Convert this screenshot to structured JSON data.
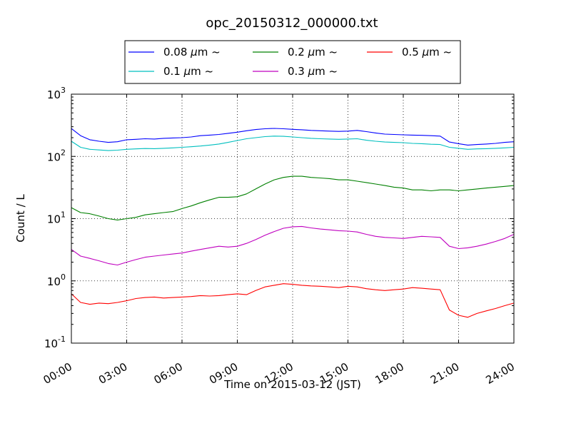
{
  "chart_data": {
    "type": "line",
    "title": "opc_20150312_000000.txt",
    "xlabel": "Time on 2015-03-12 (JST)",
    "ylabel": "Count / L",
    "x_ticks": [
      "00:00",
      "03:00",
      "06:00",
      "09:00",
      "12:00",
      "15:00",
      "18:00",
      "21:00",
      "24:00"
    ],
    "x_tick_hours": [
      0,
      3,
      6,
      9,
      12,
      15,
      18,
      21,
      24
    ],
    "xlim_hours": [
      0,
      24
    ],
    "y_scale": "log",
    "ylim": [
      0.1,
      1000
    ],
    "y_ticks": [
      {
        "value": 1000,
        "base": "10",
        "exp": "3"
      },
      {
        "value": 100,
        "base": "10",
        "exp": "2"
      },
      {
        "value": 10,
        "base": "10",
        "exp": "1"
      },
      {
        "value": 1,
        "base": "10",
        "exp": "0"
      },
      {
        "value": 0.1,
        "base": "10",
        "exp": "-1"
      }
    ],
    "grid": true,
    "legend_position": "top-center",
    "legend_unit": "μm",
    "legend_suffix": "~",
    "hours": [
      0,
      0.5,
      1,
      1.5,
      2,
      2.5,
      3,
      3.5,
      4,
      4.5,
      5,
      5.5,
      6,
      6.5,
      7,
      7.5,
      8,
      8.5,
      9,
      9.5,
      10,
      10.5,
      11,
      11.5,
      12,
      12.5,
      13,
      13.5,
      14,
      14.5,
      15,
      15.5,
      16,
      16.5,
      17,
      17.5,
      18,
      18.5,
      19,
      19.5,
      20,
      20.5,
      21,
      21.5,
      22,
      22.5,
      23,
      23.5,
      24
    ],
    "series": [
      {
        "name": "0.08",
        "color": "#0000ff",
        "values": [
          280,
          215,
          185,
          175,
          168,
          172,
          185,
          188,
          192,
          190,
          195,
          198,
          200,
          205,
          215,
          220,
          225,
          235,
          245,
          258,
          270,
          278,
          282,
          278,
          272,
          268,
          262,
          258,
          255,
          252,
          255,
          262,
          250,
          238,
          228,
          225,
          222,
          220,
          218,
          215,
          212,
          170,
          160,
          152,
          155,
          158,
          162,
          168,
          172
        ]
      },
      {
        "name": "0.1",
        "color": "#00bfbf",
        "values": [
          175,
          140,
          130,
          127,
          124,
          126,
          130,
          132,
          134,
          133,
          135,
          137,
          140,
          143,
          147,
          152,
          158,
          168,
          180,
          192,
          200,
          208,
          212,
          210,
          205,
          200,
          195,
          192,
          190,
          188,
          190,
          192,
          182,
          175,
          170,
          168,
          166,
          162,
          160,
          157,
          155,
          140,
          135,
          130,
          132,
          133,
          135,
          137,
          140
        ]
      },
      {
        "name": "0.2",
        "color": "#008000",
        "values": [
          15,
          12.5,
          12,
          11,
          10,
          9.5,
          10,
          10.5,
          11.5,
          12,
          12.5,
          13,
          14.5,
          16,
          18,
          20,
          22,
          22,
          22.5,
          25,
          30,
          36,
          42,
          46,
          48,
          48,
          46,
          45,
          44,
          42,
          42,
          40,
          38,
          36,
          34,
          32,
          31,
          29,
          29,
          28,
          29,
          29,
          28,
          29,
          30,
          31,
          32,
          33,
          34
        ]
      },
      {
        "name": "0.3",
        "color": "#bf00bf",
        "values": [
          3.2,
          2.5,
          2.3,
          2.1,
          1.9,
          1.8,
          2.0,
          2.2,
          2.4,
          2.5,
          2.6,
          2.7,
          2.8,
          3.0,
          3.2,
          3.4,
          3.6,
          3.5,
          3.6,
          4.0,
          4.6,
          5.4,
          6.2,
          7.0,
          7.4,
          7.5,
          7.1,
          6.8,
          6.6,
          6.4,
          6.3,
          6.1,
          5.6,
          5.2,
          5.0,
          4.9,
          4.8,
          5.0,
          5.2,
          5.1,
          5.0,
          3.6,
          3.3,
          3.4,
          3.6,
          3.9,
          4.3,
          4.8,
          5.6
        ]
      },
      {
        "name": "0.5",
        "color": "#ff0000",
        "values": [
          0.62,
          0.45,
          0.42,
          0.44,
          0.43,
          0.45,
          0.48,
          0.52,
          0.54,
          0.55,
          0.53,
          0.54,
          0.55,
          0.56,
          0.58,
          0.57,
          0.58,
          0.6,
          0.62,
          0.6,
          0.7,
          0.8,
          0.85,
          0.9,
          0.88,
          0.85,
          0.83,
          0.82,
          0.8,
          0.78,
          0.82,
          0.8,
          0.75,
          0.72,
          0.7,
          0.72,
          0.74,
          0.78,
          0.76,
          0.74,
          0.72,
          0.34,
          0.28,
          0.26,
          0.3,
          0.33,
          0.36,
          0.4,
          0.44
        ]
      }
    ]
  }
}
